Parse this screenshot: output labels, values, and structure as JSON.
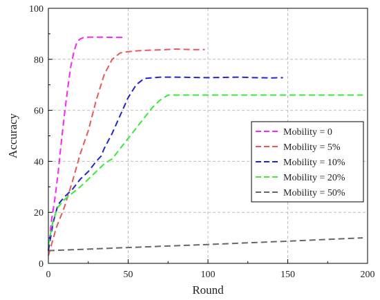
{
  "chart_data": {
    "type": "line",
    "title": "",
    "xlabel": "Round",
    "ylabel": "Accuracy",
    "xlim": [
      0,
      200
    ],
    "ylim": [
      0,
      100
    ],
    "x_ticks": [
      0,
      50,
      100,
      150,
      200
    ],
    "y_ticks": [
      0,
      20,
      40,
      60,
      80,
      100
    ],
    "grid": true,
    "legend_position": "right",
    "series": [
      {
        "name": "Mobility = 0",
        "color": "#ff22ff",
        "x": [
          0,
          2,
          4,
          6,
          8,
          10,
          12,
          14,
          16,
          18,
          20,
          22,
          25,
          30,
          35,
          40,
          45,
          48
        ],
        "y": [
          5,
          17,
          25,
          35,
          47,
          58,
          68,
          77,
          83,
          87,
          88,
          88.5,
          88.7,
          88.7,
          88.7,
          88.6,
          88.6,
          88.6
        ]
      },
      {
        "name": "Mobility = 5%",
        "color": "#ee5555",
        "x": [
          0,
          5,
          10,
          15,
          20,
          25,
          30,
          35,
          40,
          45,
          50,
          55,
          60,
          70,
          80,
          90,
          98
        ],
        "y": [
          3,
          14,
          22,
          32,
          43,
          52,
          64,
          74,
          80,
          82.5,
          83,
          83.3,
          83.5,
          83.7,
          84,
          83.8,
          83.8
        ]
      },
      {
        "name": "Mobility = 10%",
        "color": "#2222dd",
        "x": [
          0,
          3,
          6,
          10,
          15,
          20,
          25,
          30,
          33,
          35,
          40,
          45,
          50,
          55,
          60,
          70,
          80,
          100,
          120,
          130,
          140,
          147
        ],
        "y": [
          5,
          16,
          23,
          26,
          29,
          33,
          36,
          40,
          42,
          45,
          51,
          58,
          65,
          70,
          72.5,
          73,
          73,
          72.8,
          73,
          72.8,
          72.7,
          72.8
        ]
      },
      {
        "name": "Mobility = 20%",
        "color": "#33ee33",
        "x": [
          0,
          3,
          6,
          10,
          20,
          30,
          35,
          40,
          45,
          50,
          55,
          60,
          65,
          70,
          75,
          80,
          100,
          120,
          140,
          160,
          180,
          197
        ],
        "y": [
          7,
          17,
          22,
          25,
          30,
          36,
          39,
          41,
          45,
          49,
          53,
          57,
          61,
          64,
          66,
          66,
          66,
          66,
          66,
          66,
          66,
          66
        ]
      },
      {
        "name": "Mobility = 50%",
        "color": "#666666",
        "x": [
          0,
          50,
          100,
          150,
          197
        ],
        "y": [
          5,
          6.2,
          7.4,
          8.7,
          10
        ]
      }
    ]
  }
}
